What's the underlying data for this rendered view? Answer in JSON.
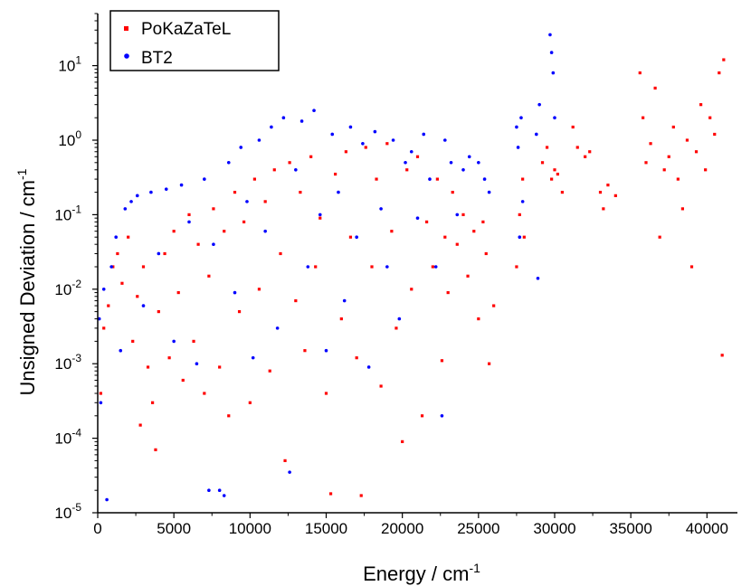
{
  "chart_data": {
    "type": "scatter",
    "xlabel": "Energy / cm",
    "xlabel_sup": "-1",
    "ylabel": "Unsigned Deviation / cm",
    "ylabel_sup": "-1",
    "xlim": [
      0,
      42000
    ],
    "ylim": [
      1e-05,
      50
    ],
    "y_scale": "log",
    "x_ticks": [
      0,
      5000,
      10000,
      15000,
      20000,
      25000,
      30000,
      35000,
      40000
    ],
    "y_ticks": [
      {
        "base": "10",
        "exp": "-5",
        "value": 1e-05
      },
      {
        "base": "10",
        "exp": "-4",
        "value": 0.0001
      },
      {
        "base": "10",
        "exp": "-3",
        "value": 0.001
      },
      {
        "base": "10",
        "exp": "-2",
        "value": 0.01
      },
      {
        "base": "10",
        "exp": "-1",
        "value": 0.1
      },
      {
        "base": "10",
        "exp": "0",
        "value": 1
      },
      {
        "base": "10",
        "exp": "1",
        "value": 10
      }
    ],
    "grid": false,
    "legend_position": "top-left",
    "series": [
      {
        "name": "PoKaZaTeL",
        "color": "#ff0000",
        "marker": "square",
        "points": [
          [
            200,
            0.0004
          ],
          [
            400,
            0.003
          ],
          [
            700,
            0.006
          ],
          [
            1000,
            0.02
          ],
          [
            1300,
            0.03
          ],
          [
            1600,
            0.012
          ],
          [
            2000,
            0.05
          ],
          [
            2300,
            0.002
          ],
          [
            2600,
            0.008
          ],
          [
            2800,
            0.00015
          ],
          [
            3000,
            0.02
          ],
          [
            3300,
            0.0009
          ],
          [
            3600,
            0.0003
          ],
          [
            3800,
            7e-05
          ],
          [
            4000,
            0.005
          ],
          [
            4400,
            0.03
          ],
          [
            4700,
            0.0012
          ],
          [
            5000,
            0.06
          ],
          [
            5300,
            0.009
          ],
          [
            5600,
            0.0006
          ],
          [
            6000,
            0.1
          ],
          [
            6300,
            0.002
          ],
          [
            6600,
            0.04
          ],
          [
            7000,
            0.0004
          ],
          [
            7300,
            0.015
          ],
          [
            7600,
            0.12
          ],
          [
            8000,
            0.0009
          ],
          [
            8300,
            0.06
          ],
          [
            8600,
            0.0002
          ],
          [
            9000,
            0.2
          ],
          [
            9300,
            0.005
          ],
          [
            9600,
            0.08
          ],
          [
            10000,
            0.0003
          ],
          [
            10300,
            0.3
          ],
          [
            10600,
            0.01
          ],
          [
            11000,
            0.15
          ],
          [
            11300,
            0.0008
          ],
          [
            11600,
            0.4
          ],
          [
            12000,
            0.03
          ],
          [
            12300,
            5e-05
          ],
          [
            12600,
            0.5
          ],
          [
            13000,
            0.007
          ],
          [
            13300,
            0.2
          ],
          [
            13600,
            0.0015
          ],
          [
            14000,
            0.6
          ],
          [
            14300,
            0.02
          ],
          [
            14600,
            0.09
          ],
          [
            15000,
            0.0004
          ],
          [
            15300,
            1.8e-05
          ],
          [
            15600,
            0.35
          ],
          [
            16000,
            0.004
          ],
          [
            16300,
            0.7
          ],
          [
            16600,
            0.05
          ],
          [
            17000,
            0.0012
          ],
          [
            17300,
            1.7e-05
          ],
          [
            17600,
            0.8
          ],
          [
            18000,
            0.02
          ],
          [
            18300,
            0.3
          ],
          [
            18600,
            0.0005
          ],
          [
            19000,
            0.9
          ],
          [
            19300,
            0.06
          ],
          [
            19600,
            0.003
          ],
          [
            20000,
            9e-05
          ],
          [
            20300,
            0.4
          ],
          [
            20600,
            0.01
          ],
          [
            21000,
            0.6
          ],
          [
            21300,
            0.0002
          ],
          [
            21600,
            0.08
          ],
          [
            22000,
            0.02
          ],
          [
            22300,
            0.3
          ],
          [
            22600,
            0.0011
          ],
          [
            22800,
            0.05
          ],
          [
            23000,
            0.009
          ],
          [
            23300,
            0.2
          ],
          [
            23600,
            0.04
          ],
          [
            24000,
            0.1
          ],
          [
            24300,
            0.015
          ],
          [
            24700,
            0.06
          ],
          [
            25000,
            0.004
          ],
          [
            25300,
            0.08
          ],
          [
            25500,
            0.03
          ],
          [
            25700,
            0.001
          ],
          [
            26000,
            0.006
          ],
          [
            27500,
            0.02
          ],
          [
            27700,
            0.1
          ],
          [
            27900,
            0.3
          ],
          [
            28000,
            0.05
          ],
          [
            29200,
            0.5
          ],
          [
            29500,
            0.8
          ],
          [
            29800,
            0.3
          ],
          [
            30000,
            0.4
          ],
          [
            30200,
            0.35
          ],
          [
            30500,
            0.2
          ],
          [
            31200,
            1.5
          ],
          [
            31500,
            0.8
          ],
          [
            32000,
            0.6
          ],
          [
            32300,
            0.7
          ],
          [
            33000,
            0.2
          ],
          [
            33200,
            0.12
          ],
          [
            33500,
            0.25
          ],
          [
            34000,
            0.18
          ],
          [
            35600,
            8
          ],
          [
            35800,
            2
          ],
          [
            36000,
            0.5
          ],
          [
            36300,
            0.9
          ],
          [
            36600,
            5
          ],
          [
            36900,
            0.05
          ],
          [
            37200,
            0.4
          ],
          [
            37500,
            0.6
          ],
          [
            37800,
            1.5
          ],
          [
            38100,
            0.3
          ],
          [
            38400,
            0.12
          ],
          [
            38700,
            1
          ],
          [
            39000,
            0.02
          ],
          [
            39300,
            0.7
          ],
          [
            39600,
            3
          ],
          [
            39900,
            0.4
          ],
          [
            40200,
            2
          ],
          [
            40500,
            1.2
          ],
          [
            40800,
            8
          ],
          [
            41000,
            0.0013
          ],
          [
            41100,
            12
          ]
        ]
      },
      {
        "name": "BT2",
        "color": "#0000ff",
        "marker": "circle",
        "points": [
          [
            100,
            0.004
          ],
          [
            200,
            0.0003
          ],
          [
            400,
            0.01
          ],
          [
            600,
            1.5e-05
          ],
          [
            900,
            0.02
          ],
          [
            1200,
            0.05
          ],
          [
            1500,
            0.0015
          ],
          [
            1800,
            0.12
          ],
          [
            2200,
            0.15
          ],
          [
            2600,
            0.18
          ],
          [
            3000,
            0.006
          ],
          [
            3500,
            0.2
          ],
          [
            4000,
            0.03
          ],
          [
            4500,
            0.22
          ],
          [
            5000,
            0.002
          ],
          [
            5500,
            0.25
          ],
          [
            6000,
            0.08
          ],
          [
            6500,
            0.001
          ],
          [
            7000,
            0.3
          ],
          [
            7300,
            2e-05
          ],
          [
            7600,
            0.04
          ],
          [
            8000,
            2e-05
          ],
          [
            8300,
            1.7e-05
          ],
          [
            8600,
            0.5
          ],
          [
            9000,
            0.009
          ],
          [
            9400,
            0.8
          ],
          [
            9800,
            0.15
          ],
          [
            10200,
            0.0012
          ],
          [
            10600,
            1
          ],
          [
            11000,
            0.06
          ],
          [
            11400,
            1.5
          ],
          [
            11800,
            0.003
          ],
          [
            12200,
            2
          ],
          [
            12600,
            3.5e-05
          ],
          [
            13000,
            0.4
          ],
          [
            13400,
            1.8
          ],
          [
            13800,
            0.02
          ],
          [
            14200,
            2.5
          ],
          [
            14600,
            0.1
          ],
          [
            15000,
            0.0015
          ],
          [
            15400,
            1.2
          ],
          [
            15800,
            0.2
          ],
          [
            16200,
            0.007
          ],
          [
            16600,
            1.5
          ],
          [
            17000,
            0.05
          ],
          [
            17400,
            0.9
          ],
          [
            17800,
            0.0009
          ],
          [
            18200,
            1.3
          ],
          [
            18600,
            0.12
          ],
          [
            19000,
            0.02
          ],
          [
            19400,
            1
          ],
          [
            19800,
            0.004
          ],
          [
            20200,
            0.5
          ],
          [
            20600,
            0.7
          ],
          [
            21000,
            0.09
          ],
          [
            21400,
            1.2
          ],
          [
            21800,
            0.3
          ],
          [
            22200,
            0.02
          ],
          [
            22600,
            0.0002
          ],
          [
            22800,
            1
          ],
          [
            23200,
            0.5
          ],
          [
            23600,
            0.1
          ],
          [
            24000,
            0.4
          ],
          [
            24400,
            0.6
          ],
          [
            25000,
            0.5
          ],
          [
            25400,
            0.3
          ],
          [
            25700,
            0.2
          ],
          [
            27500,
            1.5
          ],
          [
            27600,
            0.8
          ],
          [
            27700,
            0.05
          ],
          [
            27800,
            2
          ],
          [
            27900,
            0.15
          ],
          [
            28800,
            1.2
          ],
          [
            28900,
            0.014
          ],
          [
            29000,
            3
          ],
          [
            29700,
            26
          ],
          [
            29800,
            15
          ],
          [
            29900,
            8
          ],
          [
            30000,
            2
          ]
        ]
      }
    ]
  }
}
